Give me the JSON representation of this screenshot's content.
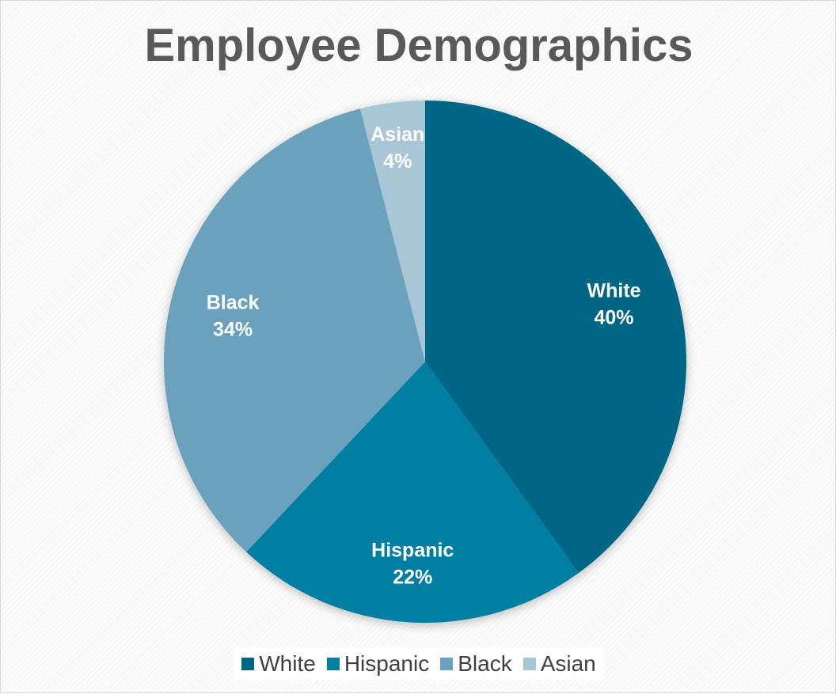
{
  "chart_data": {
    "type": "pie",
    "title": "Employee Demographics",
    "categories": [
      "White",
      "Hispanic",
      "Black",
      "Asian"
    ],
    "values": [
      40,
      22,
      34,
      4
    ],
    "value_suffix": "%",
    "colors": [
      "#006685",
      "#007fa3",
      "#6aa2bd",
      "#a9c6d6"
    ],
    "legend": {
      "position": "bottom",
      "entries": [
        "White",
        "Hispanic",
        "Black",
        "Asian"
      ]
    }
  }
}
